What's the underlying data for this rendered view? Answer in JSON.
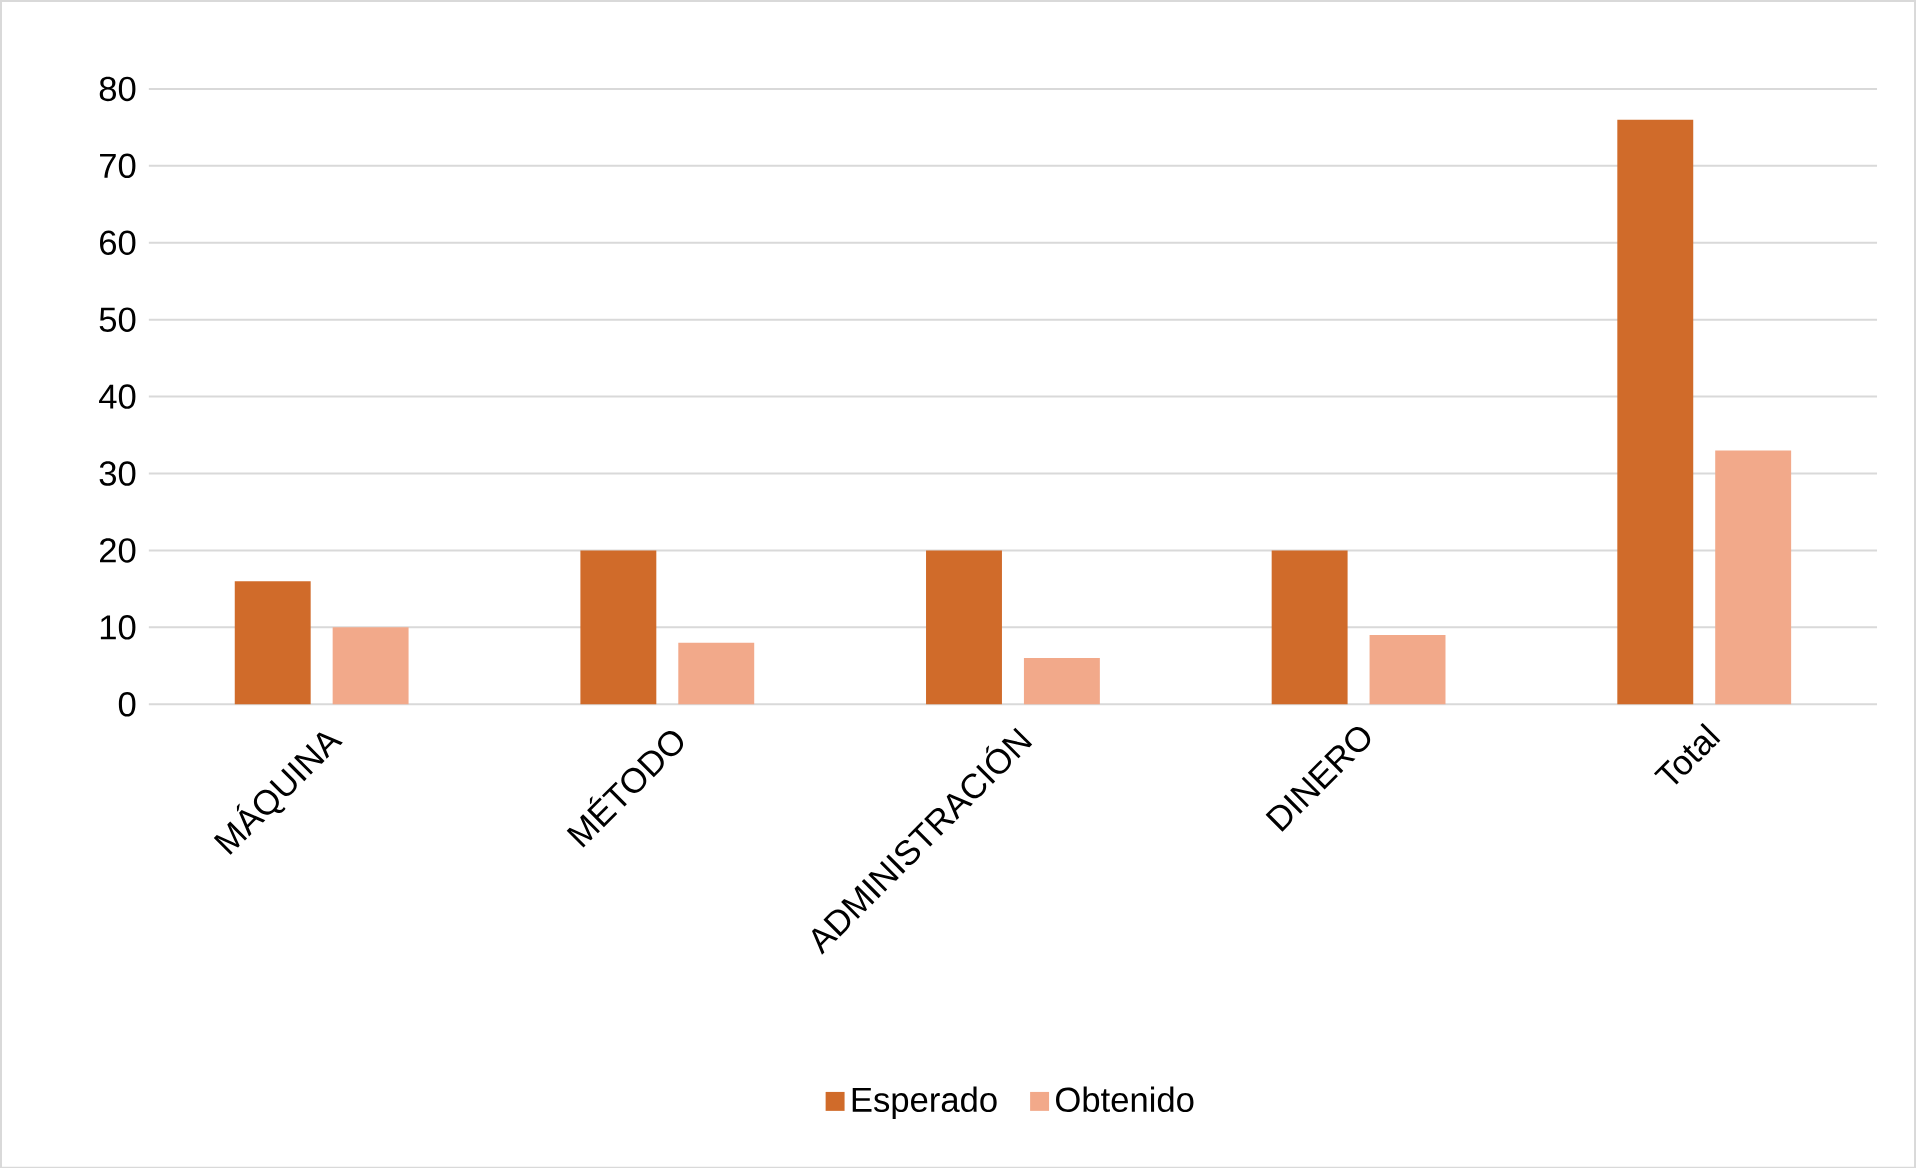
{
  "chart_data": {
    "type": "bar",
    "categories": [
      "MÁQUINA",
      "MÉTODO",
      "ADMINISTRACIÓN",
      "DINERO",
      "Total"
    ],
    "series": [
      {
        "name": "Esperado",
        "color": "#d06b2a",
        "values": [
          16,
          20,
          20,
          20,
          76
        ]
      },
      {
        "name": "Obtenido",
        "color": "#f2a98a",
        "values": [
          10,
          8,
          6,
          9,
          33
        ]
      }
    ],
    "ylim": [
      0,
      80
    ],
    "yticks": [
      0,
      10,
      20,
      30,
      40,
      50,
      60,
      70,
      80
    ],
    "grid": "y",
    "legend": "bottom"
  }
}
